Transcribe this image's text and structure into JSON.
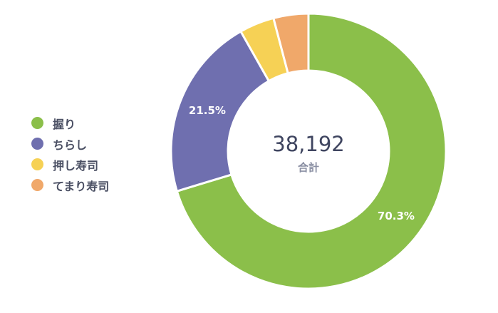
{
  "chart_data": {
    "type": "pie",
    "series": [
      {
        "name": "握り",
        "value": 70.3,
        "label": "70.3%",
        "color": "#8bbf4a"
      },
      {
        "name": "ちらし",
        "value": 21.5,
        "label": "21.5%",
        "color": "#6f6faf"
      },
      {
        "name": "押し寿司",
        "value": 4.1,
        "label": "",
        "color": "#f6d155"
      },
      {
        "name": "てまり寿司",
        "value": 4.1,
        "label": "",
        "color": "#f0a86a"
      }
    ],
    "center": {
      "value": "38,192",
      "label": "合計"
    },
    "legend_position": "left"
  }
}
